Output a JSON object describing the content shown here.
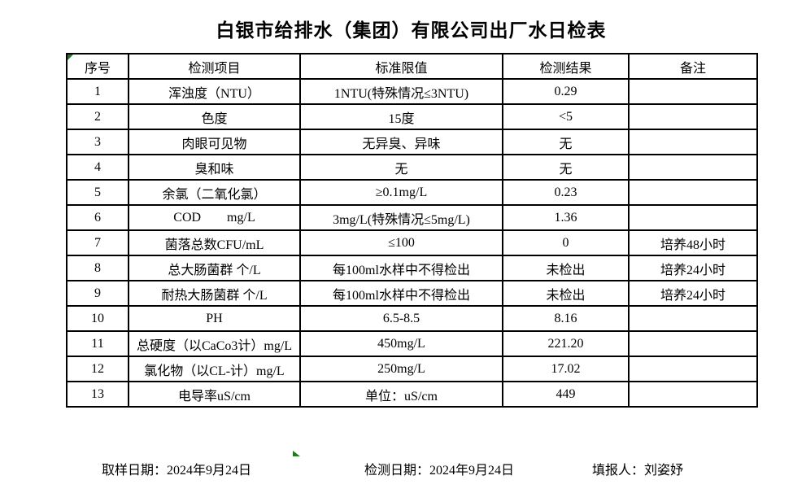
{
  "title": "白银市给排水（集团）有限公司出厂水日检表",
  "table": {
    "headers": [
      "序号",
      "检测项目",
      "标准限值",
      "检测结果",
      "备注"
    ],
    "rows": [
      {
        "no": "1",
        "item": "浑浊度（NTU）",
        "limit": "1NTU(特殊情况≤3NTU)",
        "result": "0.29",
        "note": ""
      },
      {
        "no": "2",
        "item": "色度",
        "limit": "15度",
        "result": "<5",
        "note": ""
      },
      {
        "no": "3",
        "item": "肉眼可见物",
        "limit": "无异臭、异味",
        "result": "无",
        "note": ""
      },
      {
        "no": "4",
        "item": "臭和味",
        "limit": "无",
        "result": "无",
        "note": ""
      },
      {
        "no": "5",
        "item": "余氯（二氧化氯）",
        "limit": "≥0.1mg/L",
        "result": "0.23",
        "note": ""
      },
      {
        "no": "6",
        "item": "COD        mg/L",
        "limit": "3mg/L(特殊情况≤5mg/L)",
        "result": "1.36",
        "note": ""
      },
      {
        "no": "7",
        "item": "菌落总数CFU/mL",
        "limit": "≤100",
        "result": "0",
        "note": "培养48小时"
      },
      {
        "no": "8",
        "item": "总大肠菌群 个/L",
        "limit": "每100ml水样中不得检出",
        "result": "未检出",
        "note": "培养24小时"
      },
      {
        "no": "9",
        "item": "耐热大肠菌群 个/L",
        "limit": "每100ml水样中不得检出",
        "result": "未检出",
        "note": "培养24小时"
      },
      {
        "no": "10",
        "item": "PH",
        "limit": "6.5-8.5",
        "result": "8.16",
        "note": ""
      },
      {
        "no": "11",
        "item": "总硬度（以CaCo3计）mg/L",
        "limit": "450mg/L",
        "result": "221.20",
        "note": ""
      },
      {
        "no": "12",
        "item": "氯化物（以CL-计）mg/L",
        "limit": "250mg/L",
        "result": "17.02",
        "note": ""
      },
      {
        "no": "13",
        "item": "电导率uS/cm",
        "limit": "单位：uS/cm",
        "result": "449",
        "note": ""
      }
    ]
  },
  "footer": {
    "sampling_date": "取样日期：2024年9月24日",
    "test_date": "检测日期：2024年9月24日",
    "reporter": "填报人：刘姿妤"
  },
  "colors": {
    "border": "#000000",
    "marker_green": "#1e7a1e",
    "background": "#ffffff",
    "text": "#000000"
  }
}
